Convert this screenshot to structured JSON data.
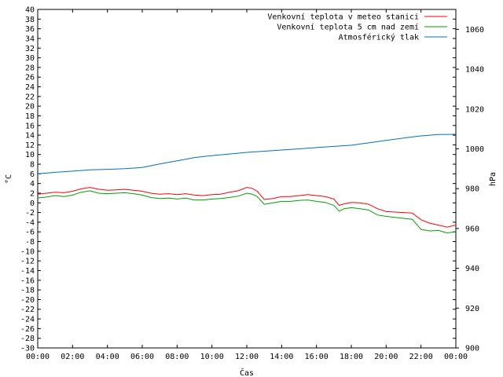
{
  "chart_data": {
    "type": "line",
    "xlabel": "Čas",
    "ylabel": "°C",
    "y2label": "hPa",
    "x_range": [
      "00:00",
      "24:00"
    ],
    "xticks": [
      "00:00",
      "02:00",
      "04:00",
      "06:00",
      "08:00",
      "10:00",
      "12:00",
      "14:00",
      "16:00",
      "18:00",
      "20:00",
      "22:00",
      "00:00"
    ],
    "ylim": [
      -30,
      40
    ],
    "y_tick_step": 2,
    "y2lim": [
      900,
      1070
    ],
    "y2_ticks": [
      900,
      920,
      940,
      960,
      980,
      1000,
      1020,
      1040,
      1060
    ],
    "grid": false,
    "legend_position": "top-right",
    "series": [
      {
        "name": "Venkovní teplota v meteo stanici",
        "axis": "left",
        "color": "#ff0000",
        "x": [
          0,
          0.5,
          1,
          1.5,
          2,
          2.5,
          3,
          3.5,
          4,
          4.5,
          5,
          5.5,
          6,
          6.5,
          7,
          7.5,
          8,
          8.5,
          9,
          9.5,
          10,
          10.5,
          11,
          11.5,
          12,
          12.3,
          12.6,
          13,
          13.5,
          14,
          14.5,
          15,
          15.5,
          16,
          16.5,
          17,
          17.3,
          17.6,
          18,
          18.5,
          19,
          19.5,
          20,
          20.5,
          21,
          21.5,
          22,
          22.5,
          23,
          23.5,
          24
        ],
        "y": [
          1.8,
          2.0,
          2.2,
          2.1,
          2.4,
          2.9,
          3.2,
          2.8,
          2.6,
          2.7,
          2.8,
          2.6,
          2.4,
          2.0,
          1.8,
          1.9,
          1.7,
          1.9,
          1.6,
          1.5,
          1.7,
          1.8,
          2.2,
          2.5,
          3.2,
          3.0,
          2.4,
          0.7,
          0.9,
          1.3,
          1.3,
          1.5,
          1.7,
          1.5,
          1.3,
          0.8,
          -0.5,
          -0.2,
          0.1,
          0.0,
          -0.3,
          -1.2,
          -1.8,
          -1.9,
          -2.0,
          -2.1,
          -3.5,
          -4.2,
          -4.6,
          -5.0,
          -4.6
        ]
      },
      {
        "name": "Venkovní teplota 5 cm nad zemí",
        "axis": "left",
        "color": "#00a000",
        "x": [
          0,
          0.5,
          1,
          1.5,
          2,
          2.5,
          3,
          3.5,
          4,
          4.5,
          5,
          5.5,
          6,
          6.5,
          7,
          7.5,
          8,
          8.5,
          9,
          9.5,
          10,
          10.5,
          11,
          11.5,
          12,
          12.3,
          12.6,
          13,
          13.5,
          14,
          14.5,
          15,
          15.5,
          16,
          16.5,
          17,
          17.3,
          17.6,
          18,
          18.5,
          19,
          19.5,
          20,
          20.5,
          21,
          21.5,
          22,
          22.5,
          23,
          23.5,
          24
        ],
        "y": [
          1.0,
          1.2,
          1.5,
          1.3,
          1.6,
          2.2,
          2.5,
          2.0,
          1.9,
          2.0,
          2.1,
          1.9,
          1.6,
          1.1,
          0.9,
          1.0,
          0.8,
          1.0,
          0.6,
          0.6,
          0.8,
          0.9,
          1.1,
          1.4,
          2.0,
          1.8,
          1.3,
          -0.3,
          0.0,
          0.3,
          0.3,
          0.5,
          0.6,
          0.3,
          0.1,
          -0.5,
          -1.7,
          -1.2,
          -1.0,
          -1.2,
          -1.5,
          -2.5,
          -2.8,
          -3.0,
          -3.2,
          -3.4,
          -5.5,
          -5.8,
          -5.7,
          -6.2,
          -6.0
        ]
      },
      {
        "name": "Atmosférický tlak",
        "axis": "right",
        "color": "#0070c0",
        "x": [
          0,
          1,
          2,
          3,
          4,
          5,
          6,
          7,
          8,
          9,
          10,
          11,
          12,
          13,
          14,
          15,
          16,
          17,
          18,
          19,
          20,
          21,
          22,
          23,
          24
        ],
        "y": [
          987.5,
          988.2,
          988.8,
          989.4,
          989.7,
          990.0,
          990.6,
          992.4,
          994.0,
          995.6,
          996.6,
          997.4,
          998.2,
          998.8,
          999.4,
          1000.0,
          1000.6,
          1001.2,
          1001.8,
          1003.0,
          1004.2,
          1005.4,
          1006.5,
          1007.2,
          1007.3
        ]
      }
    ]
  }
}
